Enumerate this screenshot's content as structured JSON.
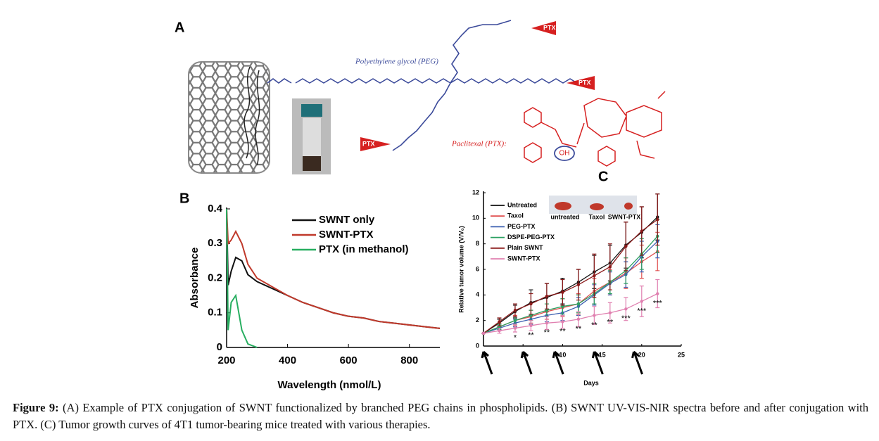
{
  "figure_a": {
    "panel_label": "A",
    "peg_label": "Polyethylene glycol (PEG)",
    "ptx_labels": [
      "PTX",
      "PTX",
      "PTX"
    ],
    "paclitaxel_label": "Paclitexal (PTX):",
    "oh_label": "OH"
  },
  "chart_data": [
    {
      "type": "line",
      "panel_label": "B",
      "x_label": "Wavelength (nmol/L)",
      "y_label": "Absorbance",
      "x": [
        200,
        205,
        215,
        230,
        250,
        270,
        300,
        350,
        400,
        450,
        500,
        550,
        600,
        650,
        700,
        750,
        800,
        850,
        900
      ],
      "series": [
        {
          "name": "SWNT only",
          "color": "#111111",
          "values": [
            0.4,
            0.18,
            0.22,
            0.26,
            0.25,
            0.21,
            0.19,
            0.17,
            0.15,
            0.13,
            0.115,
            0.1,
            0.09,
            0.085,
            0.075,
            0.07,
            0.065,
            0.06,
            0.055
          ]
        },
        {
          "name": "SWNT-PTX",
          "color": "#c0392b",
          "values": [
            0.4,
            0.3,
            0.31,
            0.335,
            0.3,
            0.24,
            0.2,
            0.175,
            0.15,
            0.13,
            0.115,
            0.1,
            0.09,
            0.085,
            0.075,
            0.07,
            0.065,
            0.06,
            0.055
          ]
        },
        {
          "name": "PTX (in methanol)",
          "color": "#27ae60",
          "values": [
            0.4,
            0.05,
            0.13,
            0.15,
            0.05,
            0.01,
            0,
            null,
            null,
            null,
            null,
            null,
            null,
            null,
            null,
            null,
            null,
            null,
            null
          ]
        }
      ],
      "xlim": [
        200,
        900
      ],
      "xticks": [
        200,
        400,
        600,
        800
      ],
      "ylim": [
        0,
        0.4
      ],
      "yticks": [
        0,
        0.1,
        0.2,
        0.3,
        0.4
      ]
    },
    {
      "type": "line",
      "panel_label": "C",
      "x_label": "Days",
      "y_label": "Relative tumor volume (V/V₀)",
      "x": [
        0,
        2,
        4,
        6,
        8,
        10,
        12,
        14,
        16,
        18,
        20,
        22
      ],
      "series": [
        {
          "name": "Untreated",
          "color": "#111111",
          "values": [
            1,
            1.8,
            2.7,
            3.4,
            3.8,
            4.3,
            5,
            5.8,
            6.5,
            7.9,
            8.9,
            10.1
          ],
          "errors": [
            0,
            0.3,
            0.5,
            1,
            1.1,
            1,
            1,
            1.3,
            1.4,
            1.8,
            2,
            1.8
          ]
        },
        {
          "name": "Taxol",
          "color": "#e05050",
          "values": [
            1,
            1.5,
            2,
            2.3,
            2.7,
            3,
            3.3,
            4.3,
            5,
            5.7,
            6.6,
            7.4
          ],
          "errors": [
            0,
            0.3,
            0.4,
            0.5,
            0.6,
            0.7,
            0.8,
            1,
            1,
            1.2,
            1.3,
            1.5
          ]
        },
        {
          "name": "PEG-PTX",
          "color": "#3a5fb0",
          "values": [
            1,
            1.4,
            1.8,
            2.1,
            2.4,
            2.6,
            3.1,
            4,
            4.9,
            5.6,
            7,
            8.2
          ],
          "errors": [
            0,
            0.2,
            0.3,
            0.4,
            0.5,
            0.6,
            0.7,
            0.8,
            0.9,
            1,
            1.2,
            1.3
          ]
        },
        {
          "name": "DSPE-PEG-PTX",
          "color": "#2aa060",
          "values": [
            1,
            1.5,
            2,
            2.4,
            2.8,
            3.1,
            3.3,
            4.1,
            5,
            5.9,
            7.2,
            8.6
          ],
          "errors": [
            0,
            0.2,
            0.3,
            0.4,
            0.5,
            0.6,
            0.7,
            0.8,
            0.9,
            1,
            1.2,
            1.3
          ]
        },
        {
          "name": "Plain SWNT",
          "color": "#8b1a1a",
          "values": [
            1,
            1.9,
            2.8,
            3.3,
            3.9,
            4.2,
            4.8,
            5.5,
            6.2,
            7.8,
            9,
            9.9
          ],
          "errors": [
            0,
            0.3,
            0.5,
            0.8,
            1,
            1,
            1.2,
            1.7,
            1.8,
            1.9,
            1.9,
            2
          ]
        },
        {
          "name": "SWNT-PTX",
          "color": "#e080b0",
          "values": [
            1,
            1.2,
            1.4,
            1.6,
            1.8,
            1.9,
            2.1,
            2.4,
            2.6,
            2.9,
            3.5,
            4.1
          ],
          "errors": [
            0,
            0.2,
            0.3,
            0.4,
            0.5,
            0.5,
            0.6,
            0.7,
            0.8,
            0.9,
            1.2,
            1.1
          ]
        }
      ],
      "significance": [
        null,
        null,
        "*",
        "**",
        "**",
        "**",
        "**",
        "**",
        "**",
        "***",
        "***",
        "***"
      ],
      "treatment_days": [
        0,
        5,
        9,
        14,
        19
      ],
      "inset_labels": [
        "untreated",
        "Taxol",
        "SWNT-PTX"
      ],
      "xlim": [
        0,
        25
      ],
      "xticks": [
        0,
        5,
        10,
        15,
        20,
        25
      ],
      "ylim": [
        0,
        12
      ],
      "yticks": [
        0,
        2,
        4,
        6,
        8,
        10,
        12
      ]
    }
  ],
  "caption": {
    "label": "Figure 9:",
    "text": "(A) Example of PTX conjugation of SWNT functionalized by branched PEG chains in phospholipids. (B) SWNT UV-VIS-NIR spectra before and after conjugation with PTX. (C) Tumor growth curves of 4T1 tumor-bearing mice treated with various therapies."
  }
}
